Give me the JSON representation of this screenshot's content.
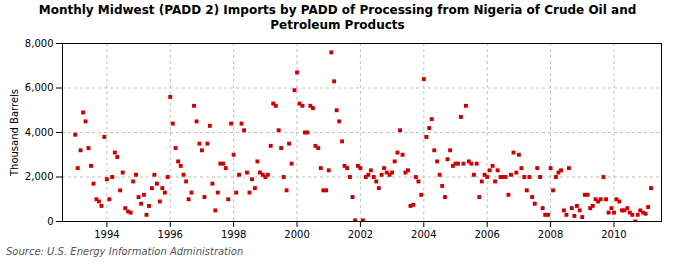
{
  "chart_data": {
    "type": "scatter",
    "title": "Monthly Midwest (PADD 2) Imports by PADD of Processing from Nigeria of Crude Oil and\nPetroleum Products",
    "ylabel": "Thousand Barrels",
    "source": "Source: U.S. Energy Information Administration",
    "color": "#cc0000",
    "marker": "square",
    "grid": true,
    "xlim": [
      1992.6,
      2011.5
    ],
    "xticks": [
      1994,
      1996,
      1998,
      2000,
      2002,
      2004,
      2006,
      2008,
      2010
    ],
    "ylim": [
      0,
      8000
    ],
    "yticks": [
      0,
      {
        "value": 2000,
        "label": "2,000"
      },
      {
        "value": 4000,
        "label": "4,000"
      },
      {
        "value": 6000,
        "label": "6,000"
      },
      {
        "value": 8000,
        "label": "8,000"
      }
    ],
    "x": [
      1993.0,
      1993.08,
      1993.17,
      1993.25,
      1993.33,
      1993.42,
      1993.5,
      1993.58,
      1993.67,
      1993.75,
      1993.83,
      1993.92,
      1994.0,
      1994.08,
      1994.17,
      1994.25,
      1994.33,
      1994.42,
      1994.5,
      1994.58,
      1994.67,
      1994.75,
      1994.83,
      1994.92,
      1995.0,
      1995.08,
      1995.17,
      1995.25,
      1995.33,
      1995.42,
      1995.5,
      1995.58,
      1995.67,
      1995.75,
      1995.83,
      1995.92,
      1996.0,
      1996.08,
      1996.17,
      1996.25,
      1996.33,
      1996.42,
      1996.5,
      1996.58,
      1996.67,
      1996.75,
      1996.83,
      1996.92,
      1997.0,
      1997.08,
      1997.17,
      1997.25,
      1997.33,
      1997.42,
      1997.5,
      1997.58,
      1997.67,
      1997.75,
      1997.83,
      1997.92,
      1998.0,
      1998.08,
      1998.17,
      1998.25,
      1998.33,
      1998.42,
      1998.5,
      1998.58,
      1998.67,
      1998.75,
      1998.83,
      1998.92,
      1999.0,
      1999.08,
      1999.17,
      1999.25,
      1999.33,
      1999.42,
      1999.5,
      1999.58,
      1999.67,
      1999.75,
      1999.83,
      1999.92,
      2000.0,
      2000.08,
      2000.17,
      2000.25,
      2000.33,
      2000.42,
      2000.5,
      2000.58,
      2000.67,
      2000.75,
      2000.83,
      2000.92,
      2001.0,
      2001.08,
      2001.17,
      2001.25,
      2001.33,
      2001.42,
      2001.5,
      2001.58,
      2001.67,
      2001.75,
      2001.83,
      2001.92,
      2002.0,
      2002.08,
      2002.17,
      2002.25,
      2002.33,
      2002.42,
      2002.5,
      2002.58,
      2002.67,
      2002.75,
      2002.83,
      2002.92,
      2003.0,
      2003.08,
      2003.17,
      2003.25,
      2003.33,
      2003.42,
      2003.5,
      2003.58,
      2003.67,
      2003.75,
      2003.83,
      2003.92,
      2004.0,
      2004.08,
      2004.17,
      2004.25,
      2004.33,
      2004.42,
      2004.5,
      2004.58,
      2004.67,
      2004.75,
      2004.83,
      2004.92,
      2005.0,
      2005.08,
      2005.17,
      2005.25,
      2005.33,
      2005.42,
      2005.5,
      2005.58,
      2005.67,
      2005.75,
      2005.83,
      2005.92,
      2006.0,
      2006.08,
      2006.17,
      2006.25,
      2006.33,
      2006.42,
      2006.5,
      2006.58,
      2006.67,
      2006.75,
      2006.83,
      2006.92,
      2007.0,
      2007.08,
      2007.17,
      2007.25,
      2007.33,
      2007.42,
      2007.5,
      2007.58,
      2007.67,
      2007.75,
      2007.83,
      2007.92,
      2008.0,
      2008.08,
      2008.17,
      2008.25,
      2008.33,
      2008.42,
      2008.5,
      2008.58,
      2008.67,
      2008.75,
      2008.83,
      2008.92,
      2009.0,
      2009.08,
      2009.17,
      2009.25,
      2009.33,
      2009.42,
      2009.5,
      2009.58,
      2009.67,
      2009.75,
      2009.83,
      2009.92,
      2010.0,
      2010.08,
      2010.17,
      2010.25,
      2010.33,
      2010.42,
      2010.5,
      2010.58,
      2010.67,
      2010.75,
      2010.83,
      2010.92,
      2011.0,
      2011.08,
      2011.17
    ],
    "values": [
      3900,
      2400,
      3200,
      4900,
      4500,
      3300,
      2500,
      1700,
      1000,
      900,
      700,
      3800,
      1900,
      1000,
      2000,
      3100,
      2900,
      1400,
      2200,
      600,
      450,
      400,
      1800,
      2100,
      1100,
      800,
      1200,
      300,
      700,
      1500,
      2100,
      1700,
      900,
      1500,
      1300,
      2000,
      5600,
      4400,
      3300,
      2700,
      2500,
      2100,
      1800,
      1000,
      1300,
      5200,
      4500,
      3500,
      3200,
      1100,
      3500,
      4300,
      1700,
      500,
      1300,
      2600,
      2600,
      2400,
      1000,
      4400,
      3000,
      1300,
      2100,
      4400,
      4100,
      2200,
      1300,
      1900,
      1500,
      2700,
      2200,
      2100,
      2000,
      2100,
      3400,
      5300,
      5200,
      4100,
      3300,
      2000,
      1400,
      3500,
      2600,
      5900,
      6700,
      5300,
      5200,
      4000,
      4000,
      5200,
      5100,
      3400,
      3300,
      2400,
      1400,
      1400,
      2300,
      7600,
      6300,
      5000,
      4500,
      3600,
      2500,
      2400,
      2000,
      1100,
      50,
      2500,
      2400,
      50,
      2000,
      2100,
      2300,
      2000,
      1800,
      1500,
      2100,
      2400,
      2200,
      2100,
      2200,
      2700,
      3100,
      4100,
      3000,
      2200,
      2300,
      700,
      750,
      2000,
      1800,
      1200,
      6400,
      3800,
      4200,
      4600,
      3200,
      2700,
      2100,
      1600,
      1100,
      2800,
      3200,
      2500,
      2600,
      2600,
      4700,
      2600,
      5200,
      2700,
      2600,
      2100,
      2600,
      1100,
      1800,
      2100,
      2000,
      2300,
      2500,
      1800,
      2300,
      2000,
      2000,
      2000,
      1200,
      2100,
      3100,
      2200,
      3000,
      2400,
      2000,
      1400,
      2000,
      1100,
      800,
      2400,
      2000,
      600,
      300,
      300,
      2400,
      1400,
      2000,
      2200,
      2300,
      500,
      300,
      2400,
      600,
      250,
      700,
      500,
      200,
      1200,
      1200,
      600,
      700,
      1000,
      900,
      1000,
      2000,
      1000,
      400,
      600,
      400,
      1000,
      900,
      500,
      500,
      600,
      400,
      300,
      0,
      300,
      500,
      400,
      350,
      650,
      1500
    ]
  }
}
